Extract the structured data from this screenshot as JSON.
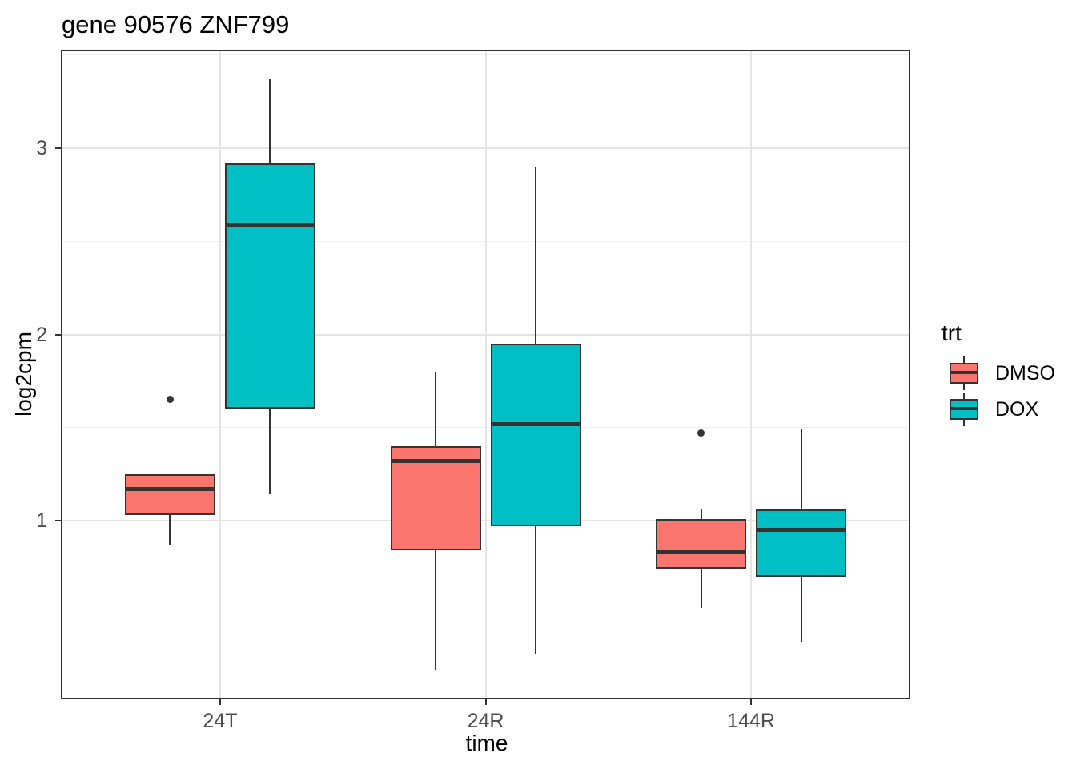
{
  "title": "gene 90576 ZNF799",
  "colors": {
    "box_outline": "#333333",
    "panel_border": "#333333",
    "grid_major": "#E5E5E5",
    "grid_minor": "#F0F0F0",
    "axis_text": "#4D4D4D",
    "title_text": "#000000",
    "background": "#FFFFFF",
    "dmso_fill": "#F8766D",
    "dox_fill": "#00BFC4"
  },
  "chart_data": {
    "type": "boxplot",
    "title": "gene 90576 ZNF799",
    "xlabel": "time",
    "ylabel": "log2cpm",
    "legend_title": "trt",
    "legend_position": "right",
    "grid": true,
    "categories": [
      "24T",
      "24R",
      "144R"
    ],
    "y_ticks": [
      1,
      2,
      3
    ],
    "y_minor_ticks": [
      0.5,
      1.5,
      2.5,
      3.5
    ],
    "ylim": [
      0.04,
      3.53
    ],
    "series": [
      {
        "name": "DMSO",
        "color": "#F8766D",
        "boxes": [
          {
            "category": "24T",
            "whisker_low": 0.87,
            "q1": 1.03,
            "median": 1.17,
            "q3": 1.25,
            "whisker_high": 1.25,
            "outliers": [
              1.65
            ]
          },
          {
            "category": "24R",
            "whisker_low": 0.2,
            "q1": 0.84,
            "median": 1.32,
            "q3": 1.4,
            "whisker_high": 1.8,
            "outliers": []
          },
          {
            "category": "144R",
            "whisker_low": 0.53,
            "q1": 0.74,
            "median": 0.83,
            "q3": 1.01,
            "whisker_high": 1.06,
            "outliers": [
              1.47
            ]
          }
        ]
      },
      {
        "name": "DOX",
        "color": "#00BFC4",
        "boxes": [
          {
            "category": "24T",
            "whisker_low": 1.14,
            "q1": 1.6,
            "median": 2.59,
            "q3": 2.92,
            "whisker_high": 3.37,
            "outliers": []
          },
          {
            "category": "24R",
            "whisker_low": 0.28,
            "q1": 0.97,
            "median": 1.52,
            "q3": 1.95,
            "whisker_high": 2.9,
            "outliers": []
          },
          {
            "category": "144R",
            "whisker_low": 0.35,
            "q1": 0.7,
            "median": 0.95,
            "q3": 1.06,
            "whisker_high": 1.49,
            "outliers": []
          }
        ]
      }
    ]
  }
}
